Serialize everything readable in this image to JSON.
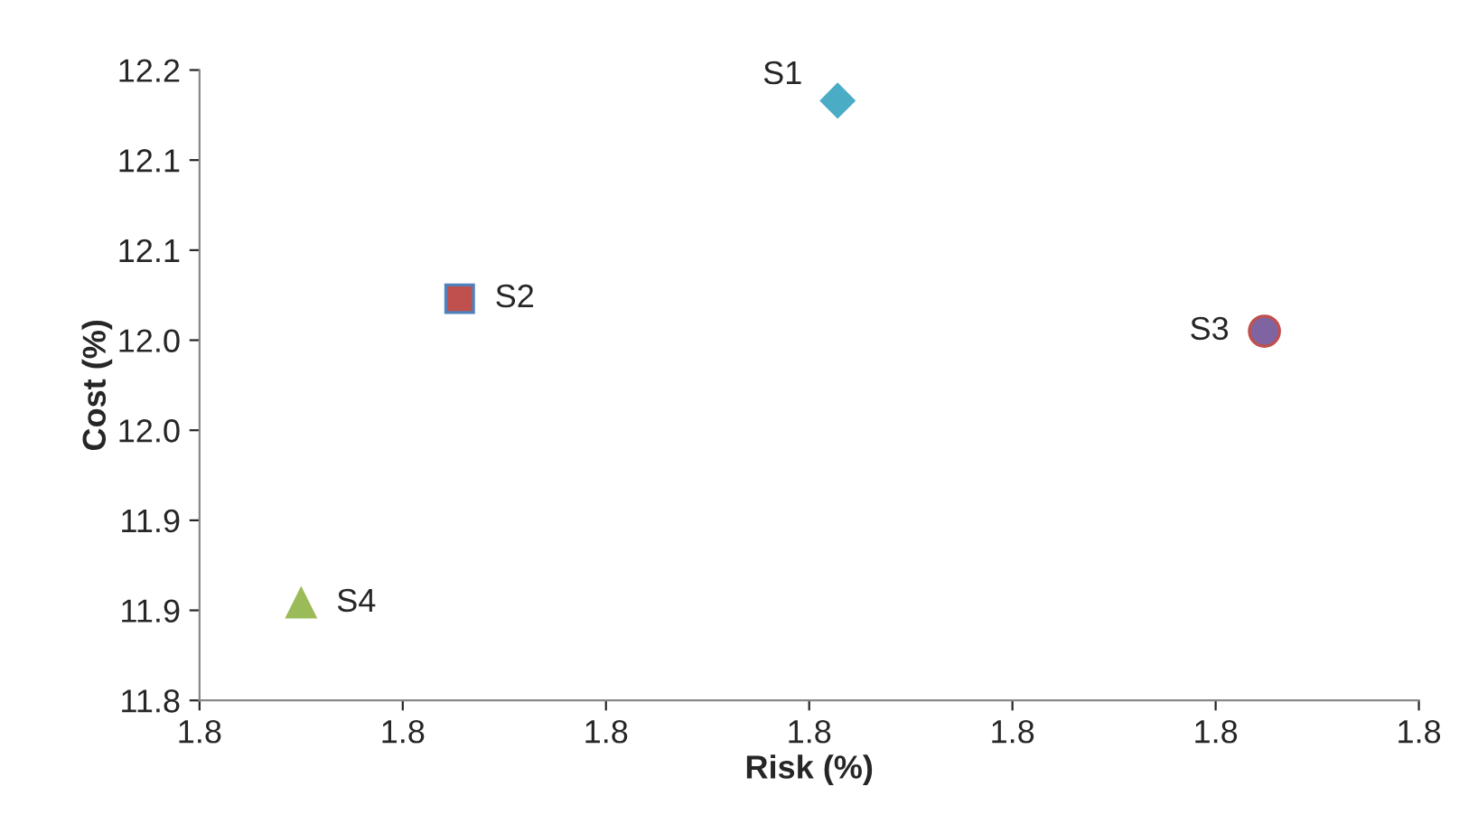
{
  "chart_data": {
    "type": "scatter",
    "xlabel": "Risk (%)",
    "ylabel": "Cost (%)",
    "xlim": [
      1.78,
      1.84
    ],
    "ylim": [
      11.8,
      12.15
    ],
    "xticks": [
      {
        "value": 1.78,
        "label": "1.8"
      },
      {
        "value": 1.79,
        "label": "1.8"
      },
      {
        "value": 1.8,
        "label": "1.8"
      },
      {
        "value": 1.81,
        "label": "1.8"
      },
      {
        "value": 1.82,
        "label": "1.8"
      },
      {
        "value": 1.83,
        "label": "1.8"
      },
      {
        "value": 1.84,
        "label": "1.8"
      }
    ],
    "yticks": [
      {
        "value": 11.8,
        "label": "11.8"
      },
      {
        "value": 11.85,
        "label": "11.9"
      },
      {
        "value": 11.9,
        "label": "11.9"
      },
      {
        "value": 11.95,
        "label": "12.0"
      },
      {
        "value": 12.0,
        "label": "12.0"
      },
      {
        "value": 12.05,
        "label": "12.1"
      },
      {
        "value": 12.1,
        "label": "12.1"
      },
      {
        "value": 12.15,
        "label": "12.2"
      }
    ],
    "grid": false,
    "legend": false,
    "series": [
      {
        "name": "S1",
        "color": "#4bacc6",
        "marker": "diamond",
        "x": [
          1.8114
        ],
        "values": [
          12.133
        ]
      },
      {
        "name": "S2",
        "color": "#c0504d",
        "marker": "square",
        "x": [
          1.7928
        ],
        "values": [
          12.023
        ]
      },
      {
        "name": "S3",
        "color": "#8064a2",
        "marker": "circle",
        "x": [
          1.8324
        ],
        "values": [
          12.005
        ]
      },
      {
        "name": "S4",
        "color": "#9bbb59",
        "marker": "triangle",
        "x": [
          1.785
        ],
        "values": [
          11.854
        ]
      }
    ]
  }
}
